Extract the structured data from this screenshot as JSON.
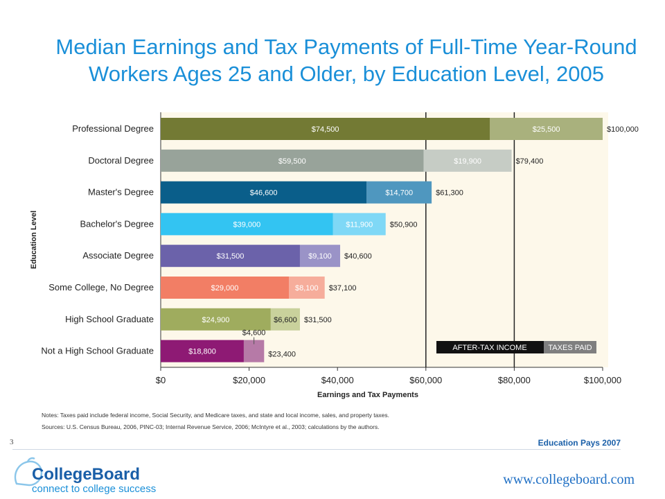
{
  "title_line1": "Median Earnings and Tax Payments of Full-Time Year-Round",
  "title_line2": "Workers Ages 25 and Older, by Education Level, 2005",
  "chart_data": {
    "type": "bar",
    "orientation": "horizontal",
    "stacked": true,
    "xlabel": "Earnings and Tax Payments",
    "ylabel": "Education Level",
    "xlim": [
      0,
      100000
    ],
    "x_ticks": [
      "$0",
      "$20,000",
      "$40,000",
      "$60,000",
      "$80,000",
      "$100,000"
    ],
    "categories": [
      "Professional Degree",
      "Doctoral Degree",
      "Master's Degree",
      "Bachelor's Degree",
      "Associate Degree",
      "Some College, No Degree",
      "High School Graduate",
      "Not a High School Graduate"
    ],
    "series": [
      {
        "name": "AFTER-TAX INCOME",
        "values": [
          74500,
          59500,
          46600,
          39000,
          31500,
          29000,
          24900,
          18800
        ],
        "labels": [
          "$74,500",
          "$59,500",
          "$46,600",
          "$39,000",
          "$31,500",
          "$29,000",
          "$24,900",
          "$18,800"
        ]
      },
      {
        "name": "TAXES PAID",
        "values": [
          25500,
          19900,
          14700,
          11900,
          9100,
          8100,
          6600,
          4600
        ],
        "labels": [
          "$25,500",
          "$19,900",
          "$14,700",
          "$11,900",
          "$9,100",
          "$8,100",
          "$6,600",
          "$4,600"
        ]
      }
    ],
    "totals": [
      "$100,000",
      "$79,400",
      "$61,300",
      "$50,900",
      "$40,600",
      "$37,100",
      "$31,500",
      "$23,400"
    ],
    "colors_income": [
      "#737a34",
      "#98a39a",
      "#0a5e8a",
      "#33c4f2",
      "#6b62aa",
      "#f27e65",
      "#9fac5e",
      "#8e1a74"
    ],
    "colors_tax": [
      "#a9b17d",
      "#c6ccc5",
      "#4f97bf",
      "#7fd8f6",
      "#9a93c7",
      "#f6ad9b",
      "#c9d19c",
      "#b67aa7"
    ],
    "legend": "bottom-right",
    "reference_lines": [
      60000,
      80000
    ]
  },
  "notes": "Notes: Taxes paid include federal income, Social Security, and Medicare taxes, and state and local income, sales, and property taxes.",
  "sources": "Sources: U.S. Census Bureau, 2006, PINC-03; Internal Revenue Service, 2006; McIntyre et al., 2003; calculations by the authors.",
  "page_number": "3",
  "footer_title": "Education Pays 2007",
  "logo_text": "CollegeBoard",
  "logo_tagline": "connect to college success",
  "website": "www.collegeboard.com"
}
